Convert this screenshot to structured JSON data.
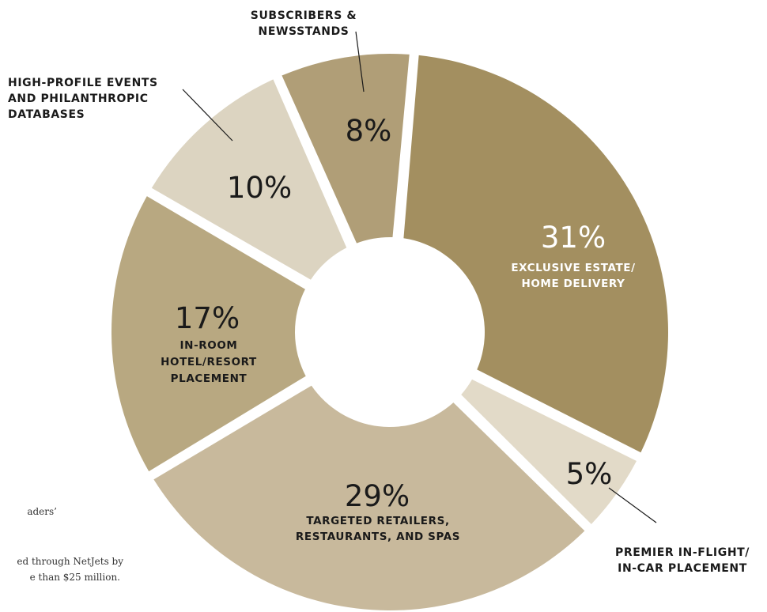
{
  "colors": {
    "background": "#ffffff",
    "label_text": "#1a1a1a",
    "light_text": "#ffffff"
  },
  "chart_data": {
    "type": "pie",
    "subtype": "donut",
    "legend": "none",
    "slices": [
      {
        "label_lines": [
          "EXCLUSIVE ESTATE/",
          "HOME DELIVERY"
        ],
        "value": 31,
        "display": "31%",
        "color": "#a38f60"
      },
      {
        "label_lines": [
          "PREMIER IN-FLIGHT/",
          "IN-CAR PLACEMENT"
        ],
        "value": 5,
        "display": "5%",
        "color": "#e2dac8"
      },
      {
        "label_lines": [
          "TARGETED RETAILERS,",
          "RESTAURANTS, AND SPAS"
        ],
        "value": 29,
        "display": "29%",
        "color": "#c8b99c"
      },
      {
        "label_lines": [
          "IN-ROOM",
          "HOTEL/RESORT",
          "PLACEMENT"
        ],
        "value": 17,
        "display": "17%",
        "color": "#b8a881"
      },
      {
        "label_lines": [
          "HIGH-PROFILE EVENTS",
          "AND PHILANTHROPIC",
          "DATABASES"
        ],
        "value": 10,
        "display": "10%",
        "color": "#dcd4c1"
      },
      {
        "label_lines": [
          "SUBSCRIBERS &",
          "NEWSSTANDS"
        ],
        "value": 8,
        "display": "8%",
        "color": "#b09e77"
      }
    ]
  },
  "notes": {
    "line1": "aders’",
    "line2": "ed through NetJets by",
    "line3": "e than $25 million."
  }
}
